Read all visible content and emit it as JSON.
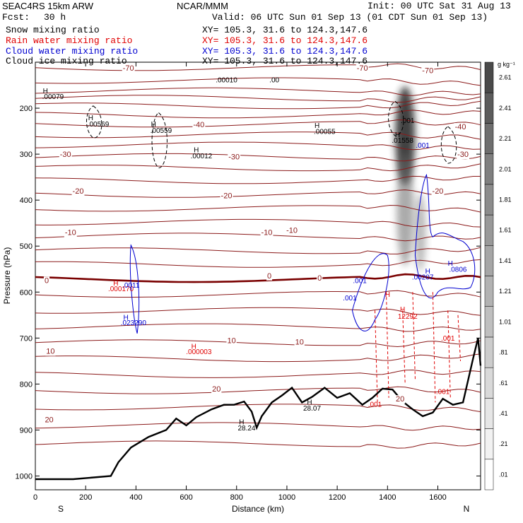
{
  "header": {
    "model": "SEAC4RS 15km ARW",
    "org": "NCAR/MMM",
    "init": "Init: 00 UTC Sat 31 Aug 13",
    "fcst_label": "Fcst:",
    "fcst_value": "30 h",
    "valid": "Valid: 06 UTC Sun 01 Sep 13 (01 CDT Sun 01 Sep 13)",
    "fields": [
      {
        "name": "Snow mixing ratio",
        "xy": "XY= 105.3, 31.6 to 124.3,147.6",
        "color": "#000000"
      },
      {
        "name": "Rain water mixing ratio",
        "xy": "XY= 105.3, 31.6 to 124.3,147.6",
        "color": "#e00000"
      },
      {
        "name": "Cloud water mixing ratio",
        "xy": "XY= 105.3, 31.6 to 124.3,147.6",
        "color": "#0000d0"
      },
      {
        "name": "Cloud ice mixing ratio",
        "xy": "XY= 105.3, 31.6 to 124.3,147.6",
        "color": "#000000"
      }
    ]
  },
  "chart_data": {
    "type": "cross-section",
    "xlabel": "Distance (km)",
    "ylabel": "Pressure (hPa)",
    "xlim": [
      0,
      1770
    ],
    "ylim": [
      1030,
      100
    ],
    "xticks": [
      0,
      200,
      400,
      600,
      800,
      1000,
      1200,
      1400,
      1600
    ],
    "yticks": [
      200,
      300,
      400,
      500,
      600,
      700,
      800,
      900,
      1000
    ],
    "end_labels": {
      "left": "S",
      "right": "N"
    },
    "colorbar": {
      "unit": "g kg⁻¹",
      "labels": [
        ".01",
        ".21",
        ".41",
        ".61",
        ".81",
        "1.01",
        "1.21",
        "1.41",
        "1.61",
        "1.81",
        "2.01",
        "2.21",
        "2.41",
        "2.61"
      ],
      "colors": [
        "#ffffff",
        "#f2f2f2",
        "#e6e6e6",
        "#d9d9d9",
        "#cccccc",
        "#bfbfbf",
        "#b2b2b2",
        "#a6a6a6",
        "#999999",
        "#8c8c8c",
        "#7f7f7f",
        "#6e6e6e",
        "#5c5c5c",
        "#4a4a4a"
      ]
    },
    "temperature_isotherms": {
      "color": "#8b1a1a",
      "zero_color": "#7a0000",
      "labels": [
        {
          "text": "-70",
          "x": 370,
          "p": 112
        },
        {
          "text": "-70",
          "x": 1300,
          "p": 112
        },
        {
          "text": "-70",
          "x": 1560,
          "p": 118
        },
        {
          "text": "-40",
          "x": 650,
          "p": 235
        },
        {
          "text": "-40",
          "x": 1690,
          "p": 240
        },
        {
          "text": "-30",
          "x": 120,
          "p": 300
        },
        {
          "text": "-30",
          "x": 790,
          "p": 305
        },
        {
          "text": "-30",
          "x": 1700,
          "p": 300
        },
        {
          "text": "-20",
          "x": 170,
          "p": 380
        },
        {
          "text": "-20",
          "x": 760,
          "p": 390
        },
        {
          "text": "-20",
          "x": 1600,
          "p": 380
        },
        {
          "text": "-10",
          "x": 140,
          "p": 470
        },
        {
          "text": "-10",
          "x": 920,
          "p": 470
        },
        {
          "text": "-10",
          "x": 1020,
          "p": 465
        },
        {
          "text": "0",
          "x": 45,
          "p": 574
        },
        {
          "text": "0",
          "x": 930,
          "p": 564
        },
        {
          "text": "0",
          "x": 1130,
          "p": 569
        },
        {
          "text": "10",
          "x": 60,
          "p": 728
        },
        {
          "text": "10",
          "x": 780,
          "p": 705
        },
        {
          "text": "10",
          "x": 1050,
          "p": 708
        },
        {
          "text": "20",
          "x": 720,
          "p": 810
        },
        {
          "text": "20",
          "x": 1450,
          "p": 832
        },
        {
          "text": "20",
          "x": 55,
          "p": 877
        }
      ]
    },
    "extrema_labels": [
      {
        "text": "H",
        "x": 40,
        "p": 168,
        "color": "#000000"
      },
      {
        "text": ".00079",
        "x": 70,
        "p": 180,
        "color": "#000000"
      },
      {
        "text": "H",
        "x": 220,
        "p": 226,
        "color": "#000000"
      },
      {
        "text": ".00569",
        "x": 250,
        "p": 240,
        "color": "#000000"
      },
      {
        "text": "H",
        "x": 470,
        "p": 240,
        "color": "#000000"
      },
      {
        "text": ".00559",
        "x": 500,
        "p": 254,
        "color": "#000000"
      },
      {
        "text": "H",
        "x": 640,
        "p": 296,
        "color": "#000000"
      },
      {
        "text": ".00012",
        "x": 660,
        "p": 309,
        "color": "#000000"
      },
      {
        "text": "H",
        "x": 1120,
        "p": 243,
        "color": "#000000"
      },
      {
        "text": ".00055",
        "x": 1150,
        "p": 256,
        "color": "#000000"
      },
      {
        "text": ".00010",
        "x": 760,
        "p": 144,
        "color": "#000000"
      },
      {
        "text": ".00",
        "x": 950,
        "p": 144,
        "color": "#000000"
      },
      {
        "text": ".001",
        "x": 1480,
        "p": 232,
        "color": "#000000"
      },
      {
        "text": "H",
        "x": 1440,
        "p": 263,
        "color": "#000000"
      },
      {
        "text": ".01558",
        "x": 1460,
        "p": 275,
        "color": "#000000"
      },
      {
        "text": ".001",
        "x": 1540,
        "p": 286,
        "color": "#0000d0"
      },
      {
        "text": "H",
        "x": 320,
        "p": 586,
        "color": "#e00000"
      },
      {
        "text": ".000170",
        "x": 340,
        "p": 598,
        "color": "#e00000"
      },
      {
        "text": ".0011",
        "x": 380,
        "p": 590,
        "color": "#0000d0"
      },
      {
        "text": "H",
        "x": 360,
        "p": 660,
        "color": "#0000d0"
      },
      {
        "text": ".023290",
        "x": 390,
        "p": 672,
        "color": "#0000d0"
      },
      {
        "text": "H",
        "x": 630,
        "p": 723,
        "color": "#e00000"
      },
      {
        "text": ".000003",
        "x": 650,
        "p": 735,
        "color": "#e00000"
      },
      {
        "text": ".001",
        "x": 1290,
        "p": 580,
        "color": "#0000d0"
      },
      {
        "text": ".001",
        "x": 1250,
        "p": 618,
        "color": "#0000d0"
      },
      {
        "text": "H",
        "x": 1560,
        "p": 560,
        "color": "#0000d0"
      },
      {
        "text": ".00207",
        "x": 1540,
        "p": 573,
        "color": "#0000d0"
      },
      {
        "text": "H",
        "x": 1650,
        "p": 543,
        "color": "#0000d0"
      },
      {
        "text": ".0806",
        "x": 1680,
        "p": 556,
        "color": "#0000d0"
      },
      {
        "text": "H",
        "x": 1400,
        "p": 610,
        "color": "#e00000"
      },
      {
        "text": "H",
        "x": 1460,
        "p": 643,
        "color": "#e00000"
      },
      {
        "text": "12292",
        "x": 1480,
        "p": 658,
        "color": "#e00000"
      },
      {
        "text": ".001",
        "x": 1640,
        "p": 706,
        "color": "#e00000"
      },
      {
        "text": ".001",
        "x": 1620,
        "p": 822,
        "color": "#e00000"
      },
      {
        "text": ".001",
        "x": 1350,
        "p": 849,
        "color": "#e00000"
      },
      {
        "text": "H",
        "x": 1090,
        "p": 845,
        "color": "#000000"
      },
      {
        "text": "28.07",
        "x": 1100,
        "p": 858,
        "color": "#000000"
      },
      {
        "text": "H",
        "x": 820,
        "p": 888,
        "color": "#000000"
      },
      {
        "text": "28.24",
        "x": 840,
        "p": 901,
        "color": "#000000"
      }
    ],
    "terrain": {
      "x": [
        0,
        150,
        300,
        330,
        380,
        450,
        520,
        560,
        600,
        640,
        700,
        750,
        790,
        830,
        860,
        880,
        900,
        940,
        980,
        1020,
        1060,
        1100,
        1150,
        1200,
        1250,
        1300,
        1340,
        1380,
        1420,
        1460,
        1500,
        1540,
        1580,
        1620,
        1660,
        1700,
        1740,
        1760,
        1770
      ],
      "p": [
        1007,
        1007,
        1000,
        970,
        938,
        915,
        900,
        875,
        890,
        872,
        855,
        845,
        845,
        838,
        860,
        895,
        870,
        840,
        825,
        808,
        840,
        828,
        808,
        830,
        820,
        845,
        830,
        810,
        812,
        838,
        855,
        870,
        862,
        832,
        845,
        840,
        745,
        700,
        760
      ]
    },
    "snow_heavy": {
      "name": "Snow mixing ratio",
      "x_center": 1470,
      "p_top": 170,
      "p_bottom": 590,
      "max": 2.61
    }
  }
}
